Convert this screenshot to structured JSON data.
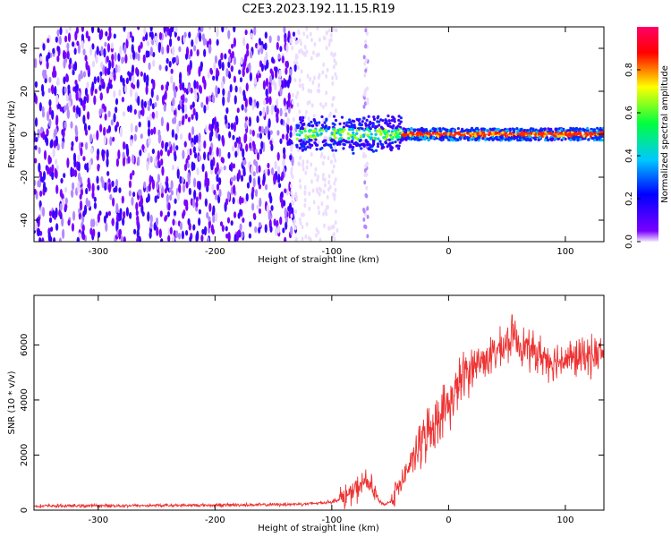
{
  "title": "C2E3.2023.192.11.15.R19",
  "chart_data": [
    {
      "type": "heatmap",
      "xlabel": "Height of straight line (km)",
      "ylabel": "Frequency (Hz)",
      "xlim": [
        -355,
        133
      ],
      "ylim": [
        -50,
        50
      ],
      "xticks": [
        -300,
        -200,
        -100,
        0,
        100
      ],
      "yticks": [
        -40,
        -20,
        0,
        20,
        40
      ],
      "colorbar": {
        "label": "Normalized spectral amplitude",
        "range": [
          0,
          1
        ],
        "ticks": [
          "0.0",
          "0.2",
          "0.4",
          "0.6",
          "0.8"
        ],
        "tick_values": [
          0.0,
          0.2,
          0.4,
          0.6,
          0.8
        ],
        "colors": [
          "#f3e8ff",
          "#7a00ff",
          "#0000ff",
          "#00c8ff",
          "#00ff40",
          "#ffff00",
          "#ff0000",
          "#ff0066"
        ]
      },
      "regions": [
        {
          "x_range": [
            -355,
            -130
          ],
          "description": "broadband noise",
          "amplitude": 0.1
        },
        {
          "x_range": [
            -130,
            -35
          ],
          "description": "signal onset",
          "amplitude": 0.4
        },
        {
          "x_range": [
            -35,
            133
          ],
          "description": "narrowband signal near 0 Hz",
          "amplitude": 0.85
        }
      ],
      "grid": false
    },
    {
      "type": "line",
      "xlabel": "Height of straight line (km)",
      "ylabel": "SNR (10 * v/v)",
      "xlim": [
        -355,
        133
      ],
      "ylim": [
        0,
        7800
      ],
      "xticks": [
        -300,
        -200,
        -100,
        0,
        100
      ],
      "yticks": [
        0,
        2000,
        4000,
        6000
      ],
      "series": [
        {
          "color": "#ee3333",
          "x": [
            -355,
            -300,
            -250,
            -200,
            -150,
            -120,
            -100,
            -90,
            -80,
            -75,
            -70,
            -65,
            -60,
            -55,
            -50,
            -45,
            -40,
            -35,
            -30,
            -25,
            -20,
            -15,
            -10,
            -5,
            0,
            5,
            10,
            15,
            20,
            25,
            30,
            40,
            50,
            55,
            60,
            70,
            80,
            90,
            100,
            110,
            120,
            133
          ],
          "y": [
            150,
            160,
            170,
            180,
            200,
            230,
            300,
            450,
            700,
            900,
            1100,
            700,
            350,
            200,
            300,
            700,
            1000,
            1500,
            1900,
            2300,
            2700,
            3000,
            3300,
            3600,
            3800,
            4200,
            4700,
            5000,
            5200,
            5350,
            5450,
            5700,
            6000,
            6400,
            6100,
            5800,
            5600,
            5400,
            5500,
            5500,
            5600,
            5700
          ]
        }
      ],
      "grid": false
    }
  ]
}
